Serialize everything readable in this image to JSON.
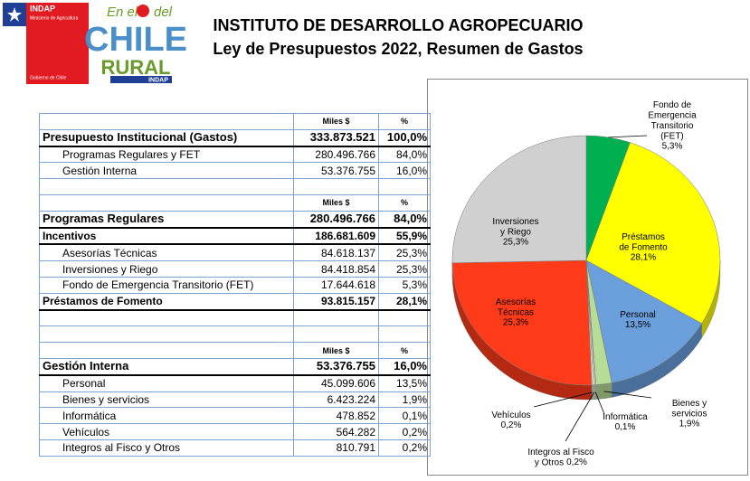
{
  "logos": {
    "indap": {
      "name": "INDAP",
      "ministry": "Ministerio de Agricultura",
      "government": "Gobierno de Chile"
    },
    "chile_rural": {
      "top_left": "En el",
      "top_right": "del",
      "main": "CHILE",
      "sub": "RURAL",
      "brand": "INDAP"
    }
  },
  "header": {
    "title": "INSTITUTO DE DESARROLLO AGROPECUARIO",
    "subtitle": "Ley de Presupuestos 2022, Resumen de Gastos"
  },
  "tables": [
    {
      "header": [
        "Miles $",
        "%"
      ],
      "rows": [
        [
          "Presupuesto Institucional (Gastos)",
          "333.873.521",
          "100,0%"
        ],
        [
          "Programas Regulares y FET",
          "280.496.766",
          "84,0%"
        ],
        [
          "Gestión Interna",
          "53.376.755",
          "16,0%"
        ]
      ]
    },
    {
      "header": [
        "Miles $",
        "%"
      ],
      "rows": [
        [
          "Programas Regulares",
          "280.496.766",
          "84,0%"
        ],
        [
          "Incentivos",
          "186.681.609",
          "55,9%"
        ],
        [
          "Asesorías Técnicas",
          "84.618.137",
          "25,3%"
        ],
        [
          "Inversiones y Riego",
          "84.418.854",
          "25,3%"
        ],
        [
          "Fondo de Emergencia Transitorio (FET)",
          "17.644.618",
          "5,3%"
        ],
        [
          "Préstamos de Fomento",
          "93.815.157",
          "28,1%"
        ]
      ]
    },
    {
      "header": [
        "Miles $",
        "%"
      ],
      "rows": [
        [
          "Gestión Interna",
          "53.376.755",
          "16,0%"
        ],
        [
          "Personal",
          "45.099.606",
          "13,5%"
        ],
        [
          "Bienes y servicios",
          "6.423.224",
          "1,9%"
        ],
        [
          "Informática",
          "478.852",
          "0,1%"
        ],
        [
          "Vehículos",
          "564.282",
          "0,2%"
        ],
        [
          "Integros al Fisco  y Otros",
          "810.791",
          "0,2%"
        ]
      ]
    }
  ],
  "chart_data": {
    "type": "pie",
    "categories": [
      "Fondo de Emergencia Transitorio (FET)",
      "Préstamos de Fomento",
      "Personal",
      "Bienes y servicios",
      "Informática",
      "Integros al Fisco y Otros",
      "Vehículos",
      "Asesorías Técnicas",
      "Inversiones y Riego"
    ],
    "values": [
      5.3,
      28.1,
      13.5,
      1.9,
      0.1,
      0.2,
      0.2,
      25.3,
      25.3
    ],
    "value_labels": [
      "5,3%",
      "28,1%",
      "13,5%",
      "1,9%",
      "0,1%",
      "0,2%",
      "0,2%",
      "25,3%",
      "25,3%"
    ],
    "colors": [
      "#00b050",
      "#ffff00",
      "#6a9fdc",
      "#b6dc96",
      "#f0f0f0",
      "#e8e8e8",
      "#dde8cc",
      "#ff3b1a",
      "#d0d0d0"
    ]
  }
}
